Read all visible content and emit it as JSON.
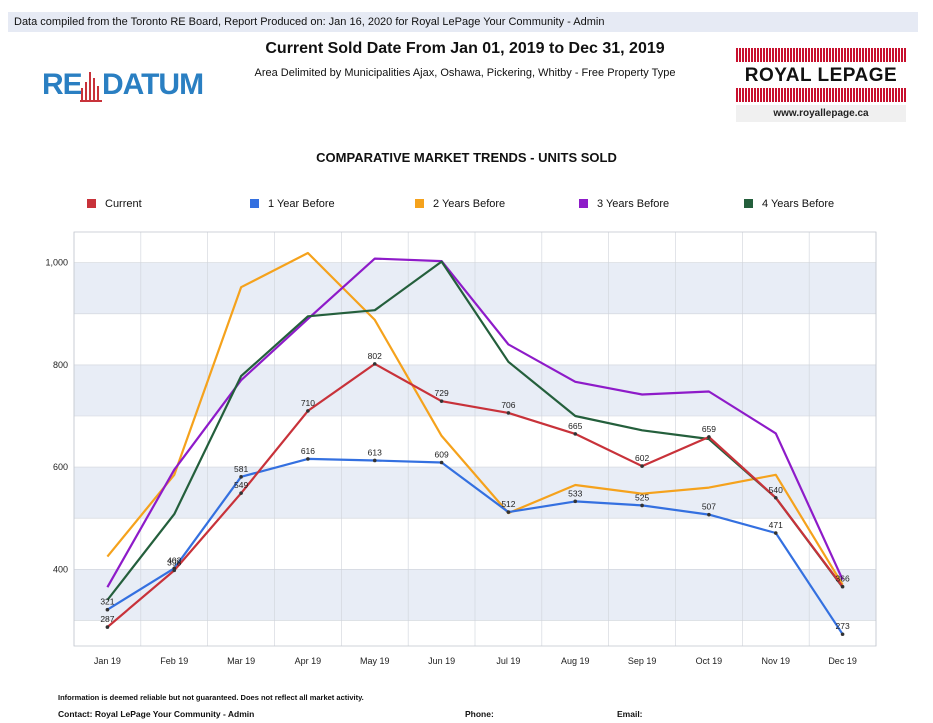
{
  "header": {
    "info_bar": "Data compiled from the Toronto RE Board, Report Produced on: Jan 16, 2020 for Royal LePage Your Community -  Admin",
    "title": "Current Sold Date From Jan 01, 2019 to Dec 31, 2019",
    "subtitle": "Area Delimited by Municipalities Ajax, Oshawa, Pickering, Whitby - Free Property Type",
    "logo_left_part1": "RE",
    "logo_left_part2": "DATUM",
    "logo_right_name": "ROYAL LEPAGE",
    "logo_right_url": "www.royallepage.ca"
  },
  "colors": {
    "current": "#c8323a",
    "y1": "#3470e0",
    "y2": "#f5a21c",
    "y3": "#8e1bc9",
    "y4": "#245f3c",
    "band": "#e8edf6",
    "grid": "#cfd3da"
  },
  "chart_data": {
    "type": "line",
    "title": "COMPARATIVE MARKET TRENDS - UNITS SOLD",
    "legend_position": "top",
    "grid": true,
    "ylim": [
      250,
      1060
    ],
    "yticks": [
      400,
      600,
      800,
      1000
    ],
    "ytick_labels": [
      "400",
      "600",
      "800",
      "1,000"
    ],
    "categories": [
      "Jan 19",
      "Feb 19",
      "Mar 19",
      "Apr 19",
      "May 19",
      "Jun 19",
      "Jul 19",
      "Aug 19",
      "Sep 19",
      "Oct 19",
      "Nov 19",
      "Dec 19"
    ],
    "series": [
      {
        "key": "y2",
        "name": "2 Years Before",
        "values": [
          425,
          585,
          952,
          1019,
          888,
          661,
          510,
          565,
          548,
          560,
          585,
          370
        ],
        "labels": []
      },
      {
        "key": "y3",
        "name": "3 Years Before",
        "values": [
          365,
          595,
          770,
          890,
          1008,
          1003,
          840,
          767,
          742,
          748,
          666,
          380
        ],
        "labels": []
      },
      {
        "key": "y4",
        "name": "4 Years Before",
        "values": [
          340,
          508,
          778,
          895,
          907,
          1002,
          806,
          700,
          672,
          655,
          540,
          365
        ],
        "labels": []
      },
      {
        "key": "y1",
        "name": "1 Year Before",
        "values": [
          321,
          402,
          581,
          616,
          613,
          609,
          512,
          533,
          525,
          507,
          471,
          273
        ],
        "labels": [
          "321",
          "402",
          "581",
          "616",
          "613",
          "609",
          "512",
          "533",
          "525",
          "507",
          "471",
          "273"
        ]
      },
      {
        "key": "current",
        "name": "Current",
        "values": [
          287,
          398,
          549,
          710,
          802,
          729,
          706,
          665,
          602,
          659,
          540,
          366
        ],
        "labels": [
          "287",
          "398",
          "549",
          "710",
          "802",
          "729",
          "706",
          "665",
          "602",
          "659",
          "540",
          "366"
        ]
      }
    ],
    "legend_order": [
      "current",
      "y1",
      "y2",
      "y3",
      "y4"
    ]
  },
  "footer": {
    "note": "Information is deemed reliable but not guaranteed. Does not reflect all market activity.",
    "contact": "Contact: Royal LePage Your Community -  Admin",
    "phone": "Phone:",
    "email": "Email:"
  }
}
